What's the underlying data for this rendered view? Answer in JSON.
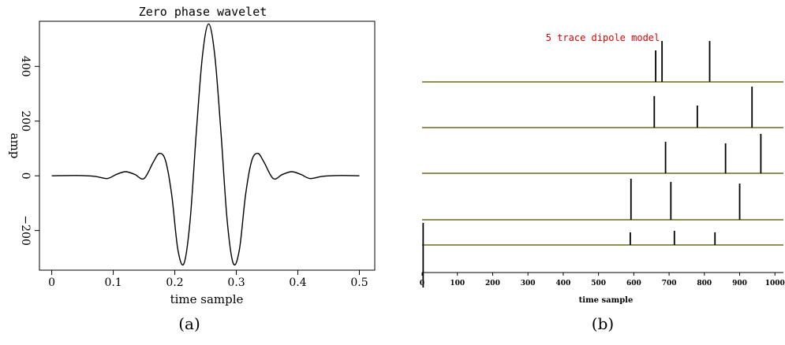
{
  "panel_a": {
    "caption": "(a)",
    "chart_data": {
      "type": "line",
      "title": "Zero phase wavelet",
      "xlabel": "time sample",
      "ylabel": "amp",
      "xlim": [
        -0.02,
        0.525
      ],
      "ylim": [
        -345,
        565
      ],
      "xticks": [
        0,
        0.1,
        0.2,
        0.3,
        0.4,
        0.5
      ],
      "xtick_labels": [
        "0",
        "0.1",
        "0.2",
        "0.3",
        "0.4",
        "0.5"
      ],
      "yticks": [
        400,
        200,
        0,
        -200
      ],
      "ytick_labels": [
        "400",
        "200",
        "0",
        "−200"
      ],
      "series": [
        {
          "x": [
            0,
            0.04,
            0.07,
            0.09,
            0.105,
            0.12,
            0.135,
            0.15,
            0.165,
            0.175,
            0.185,
            0.195,
            0.205,
            0.215,
            0.225,
            0.235,
            0.245,
            0.255,
            0.265,
            0.275,
            0.285,
            0.295,
            0.305,
            0.315,
            0.325,
            0.335,
            0.345,
            0.36,
            0.375,
            0.39,
            0.405,
            0.42,
            0.44,
            0.47,
            0.5
          ],
          "y": [
            0,
            1,
            -2,
            -10,
            5,
            15,
            5,
            -10,
            50,
            82,
            55,
            -70,
            -270,
            -320,
            -160,
            160,
            440,
            555,
            440,
            160,
            -160,
            -320,
            -270,
            -70,
            55,
            82,
            50,
            -10,
            5,
            15,
            5,
            -10,
            -2,
            1,
            0
          ]
        }
      ]
    }
  },
  "panel_b": {
    "caption": "(b)",
    "chart_data": {
      "type": "line",
      "title": "5 trace dipole model",
      "xlabel": "time sample",
      "xlim": [
        0,
        1024
      ],
      "xticks": [
        0,
        100,
        200,
        300,
        400,
        500,
        600,
        700,
        800,
        900,
        1000
      ],
      "xtick_labels": [
        "0",
        "100",
        "200",
        "300",
        "400",
        "500",
        "600",
        "700",
        "800",
        "900",
        "1000"
      ],
      "series": [
        {
          "spikes": [
            {
              "x": 662,
              "amp": 1.0
            },
            {
              "x": 680,
              "amp": 1.3
            },
            {
              "x": 815,
              "amp": 1.3
            }
          ]
        },
        {
          "spikes": [
            {
              "x": 658,
              "amp": 1.0
            },
            {
              "x": 780,
              "amp": 0.7
            },
            {
              "x": 935,
              "amp": 1.3
            }
          ]
        },
        {
          "spikes": [
            {
              "x": 690,
              "amp": 1.0
            },
            {
              "x": 860,
              "amp": 0.95
            },
            {
              "x": 960,
              "amp": 1.25
            }
          ]
        },
        {
          "spikes": [
            {
              "x": 592,
              "amp": 1.3
            },
            {
              "x": 705,
              "amp": 1.2
            },
            {
              "x": 900,
              "amp": 1.15
            }
          ]
        },
        {
          "spikes": [
            {
              "x": 3,
              "amp": -1.35
            },
            {
              "x": 3,
              "amp": 0.7
            },
            {
              "x": 590,
              "amp": 0.4
            },
            {
              "x": 715,
              "amp": 0.45
            },
            {
              "x": 830,
              "amp": 0.4
            }
          ]
        }
      ]
    }
  },
  "colors": {
    "baseline": "#6b6a1e",
    "title_b": "#e00000"
  }
}
